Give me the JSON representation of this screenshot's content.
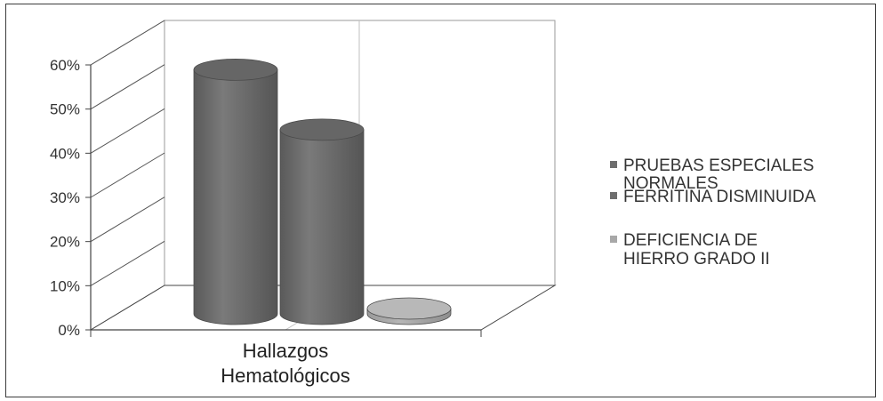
{
  "chart_data": {
    "type": "bar",
    "style": "3d-cylinder",
    "categories": [
      "Hallazgos Hematológicos"
    ],
    "category_label_lines": [
      "Hallazgos",
      "Hematológicos"
    ],
    "series": [
      {
        "name": "PRUEBAS ESPECIALES NORMALES",
        "name_lines": [
          "PRUEBAS ESPECIALES",
          "NORMALES"
        ],
        "values": [
          57
        ],
        "color": "#6e6e6e"
      },
      {
        "name": "FERRITINA DISMINUIDA",
        "name_lines": [
          "FERRITINA DISMINUIDA"
        ],
        "values": [
          43
        ],
        "color": "#6e6e6e"
      },
      {
        "name": "DEFICIENCIA DE HIERRO GRADO II",
        "name_lines": [
          "DEFICIENCIA DE",
          "HIERRO GRADO II"
        ],
        "values": [
          1
        ],
        "color": "#a8a8a8"
      }
    ],
    "y_ticks": [
      "0%",
      "10%",
      "20%",
      "30%",
      "40%",
      "50%",
      "60%"
    ],
    "ylim": [
      0,
      60
    ],
    "grid": true,
    "legend_position": "right",
    "title": "",
    "xlabel": "",
    "ylabel": ""
  }
}
